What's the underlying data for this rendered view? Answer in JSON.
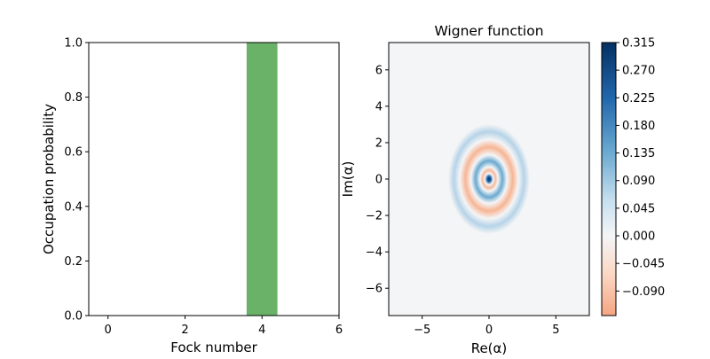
{
  "chart_data": [
    {
      "type": "bar",
      "xlabel": "Fock number",
      "ylabel": "Occupation probability",
      "title": "",
      "xlim": [
        -0.5,
        6
      ],
      "ylim": [
        0,
        1.0
      ],
      "x_ticks": [
        "0",
        "2",
        "4",
        "6"
      ],
      "y_ticks": [
        "0.0",
        "0.2",
        "0.4",
        "0.6",
        "0.8",
        "1.0"
      ],
      "bar_color": "#6ab268",
      "bars": [
        {
          "x": 0,
          "value": 0.0
        },
        {
          "x": 1,
          "value": 0.0
        },
        {
          "x": 2,
          "value": 0.0
        },
        {
          "x": 3,
          "value": 0.0
        },
        {
          "x": 4,
          "value": 1.0
        },
        {
          "x": 5,
          "value": 0.0
        }
      ]
    },
    {
      "type": "heatmap",
      "title": "Wigner function",
      "xlabel": "Re(α)",
      "ylabel": "Im(α)",
      "xlim": [
        -7.5,
        7.5
      ],
      "ylim": [
        -7.5,
        7.5
      ],
      "x_ticks": [
        "−5",
        "0",
        "5"
      ],
      "y_ticks": [
        "6",
        "4",
        "2",
        "0",
        "−2",
        "−4",
        "−6"
      ],
      "colormap": "RdBu",
      "value_range": [
        -0.13,
        0.315
      ],
      "colorbar_ticks": [
        "0.315",
        "0.270",
        "0.225",
        "0.180",
        "0.135",
        "0.090",
        "0.045",
        "0.000",
        "−0.045",
        "−0.090"
      ],
      "colorbar_tick_values": [
        0.315,
        0.27,
        0.225,
        0.18,
        0.135,
        0.09,
        0.045,
        0.0,
        -0.045,
        -0.09
      ],
      "colors": {
        "positive_max": "#053061",
        "zero": "#f4f5f6",
        "negative_max": "#f4a582"
      }
    }
  ]
}
